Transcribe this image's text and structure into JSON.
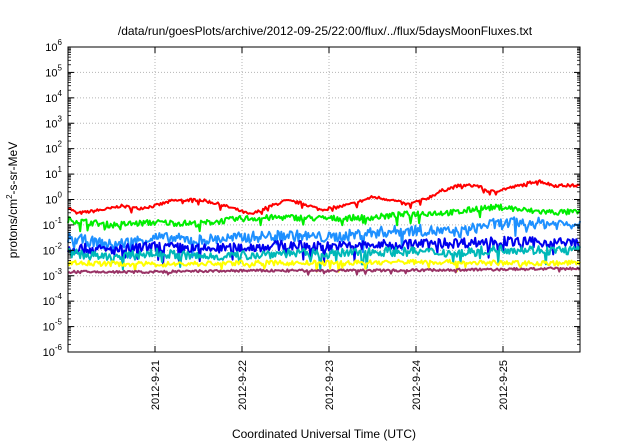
{
  "chart_data": {
    "type": "line",
    "title": "/data/run/goesPlots/archive/2012-09-25/22:00/flux/../flux/5daysMoonFluxes.txt",
    "xlabel": "Coordinated Universal Time (UTC)",
    "ylabel_parts": {
      "base": "protons/cm",
      "sup": "2",
      "rest": "-s-sr-MeV"
    },
    "y_scale": "log",
    "ylim_exponents": [
      -6,
      6
    ],
    "yticks": [
      {
        "base": "10",
        "exp": "-6",
        "e": -6
      },
      {
        "base": "10",
        "exp": "-5",
        "e": -5
      },
      {
        "base": "10",
        "exp": "-4",
        "e": -4
      },
      {
        "base": "10",
        "exp": "-3",
        "e": -3
      },
      {
        "base": "10",
        "exp": "-2",
        "e": -2
      },
      {
        "base": "10",
        "exp": "-1",
        "e": -1
      },
      {
        "base": "10",
        "exp": "0",
        "e": 0
      },
      {
        "base": "10",
        "exp": "1",
        "e": 1
      },
      {
        "base": "10",
        "exp": "2",
        "e": 2
      },
      {
        "base": "10",
        "exp": "3",
        "e": 3
      },
      {
        "base": "10",
        "exp": "4",
        "e": 4
      },
      {
        "base": "10",
        "exp": "5",
        "e": 5
      },
      {
        "base": "10",
        "exp": "6",
        "e": 6
      }
    ],
    "x_range_days": [
      0,
      5
    ],
    "xticks": [
      {
        "label": "2012-9-21",
        "day": 1
      },
      {
        "label": "2012-9-22",
        "day": 2
      },
      {
        "label": "2012-9-23",
        "day": 3
      },
      {
        "label": "2012-9-24",
        "day": 4
      },
      {
        "label": "2012-9-25",
        "day": 5
      }
    ],
    "grid": true,
    "series": [
      {
        "color": "#ff0000",
        "noise": 0.06,
        "points": [
          [
            0,
            -0.3
          ],
          [
            0.1,
            -0.55
          ],
          [
            0.3,
            -0.45
          ],
          [
            0.5,
            -0.35
          ],
          [
            0.6,
            -0.25
          ],
          [
            0.8,
            -0.35
          ],
          [
            1.0,
            -0.25
          ],
          [
            1.2,
            -0.05
          ],
          [
            1.5,
            0.0
          ],
          [
            1.7,
            -0.15
          ],
          [
            1.9,
            -0.35
          ],
          [
            2.1,
            -0.6
          ],
          [
            2.3,
            -0.3
          ],
          [
            2.5,
            -0.05
          ],
          [
            2.7,
            -0.15
          ],
          [
            2.9,
            -0.4
          ],
          [
            3.1,
            -0.3
          ],
          [
            3.3,
            -0.15
          ],
          [
            3.5,
            0.1
          ],
          [
            3.7,
            0.0
          ],
          [
            3.9,
            -0.2
          ],
          [
            4.1,
            0.0
          ],
          [
            4.3,
            0.35
          ],
          [
            4.5,
            0.55
          ],
          [
            4.7,
            0.55
          ],
          [
            4.85,
            0.3
          ],
          [
            5.0,
            0.4
          ],
          [
            5.2,
            0.55
          ],
          [
            5.4,
            0.75
          ],
          [
            5.58,
            0.55
          ]
        ]
      },
      {
        "color": "#00ee00",
        "noise": 0.12,
        "points": [
          [
            0,
            -0.8
          ],
          [
            0.5,
            -1.0
          ],
          [
            1.0,
            -0.9
          ],
          [
            1.5,
            -0.95
          ],
          [
            2.0,
            -0.75
          ],
          [
            2.5,
            -0.7
          ],
          [
            3.0,
            -0.75
          ],
          [
            3.5,
            -0.7
          ],
          [
            4.0,
            -0.55
          ],
          [
            4.5,
            -0.5
          ],
          [
            4.7,
            -0.35
          ],
          [
            5.0,
            -0.3
          ],
          [
            5.3,
            -0.45
          ],
          [
            5.58,
            -0.5
          ]
        ]
      },
      {
        "color": "#1e90ff",
        "noise": 0.22,
        "points": [
          [
            0,
            -1.5
          ],
          [
            0.5,
            -1.8
          ],
          [
            1.0,
            -1.5
          ],
          [
            1.5,
            -1.6
          ],
          [
            2.0,
            -1.5
          ],
          [
            2.5,
            -1.4
          ],
          [
            3.0,
            -1.5
          ],
          [
            3.5,
            -1.3
          ],
          [
            4.0,
            -1.2
          ],
          [
            4.5,
            -1.3
          ],
          [
            4.8,
            -1.0
          ],
          [
            5.2,
            -0.9
          ],
          [
            5.58,
            -0.95
          ]
        ]
      },
      {
        "color": "#0000ee",
        "noise": 0.2,
        "points": [
          [
            0,
            -1.9
          ],
          [
            0.5,
            -2.0
          ],
          [
            1.0,
            -1.85
          ],
          [
            1.5,
            -1.95
          ],
          [
            2.0,
            -1.9
          ],
          [
            2.5,
            -1.8
          ],
          [
            3.0,
            -1.85
          ],
          [
            3.5,
            -1.8
          ],
          [
            4.0,
            -1.75
          ],
          [
            4.5,
            -1.7
          ],
          [
            5.0,
            -1.65
          ],
          [
            5.58,
            -1.7
          ]
        ]
      },
      {
        "color": "#00b8b8",
        "noise": 0.18,
        "points": [
          [
            0,
            -2.1
          ],
          [
            0.5,
            -2.3
          ],
          [
            1.0,
            -2.1
          ],
          [
            1.5,
            -2.25
          ],
          [
            2.0,
            -2.2
          ],
          [
            2.5,
            -2.1
          ],
          [
            3.0,
            -2.15
          ],
          [
            3.5,
            -2.05
          ],
          [
            4.0,
            -2.05
          ],
          [
            4.5,
            -2.1
          ],
          [
            5.0,
            -1.95
          ],
          [
            5.58,
            -2.0
          ]
        ]
      },
      {
        "color": "#ffff00",
        "noise": 0.1,
        "points": [
          [
            0,
            -2.5
          ],
          [
            1.0,
            -2.55
          ],
          [
            2.0,
            -2.5
          ],
          [
            3.0,
            -2.5
          ],
          [
            4.0,
            -2.45
          ],
          [
            5.0,
            -2.5
          ],
          [
            5.58,
            -2.5
          ]
        ]
      },
      {
        "color": "#993366",
        "noise": 0.05,
        "points": [
          [
            0,
            -2.85
          ],
          [
            1.0,
            -2.85
          ],
          [
            2.0,
            -2.8
          ],
          [
            3.0,
            -2.8
          ],
          [
            4.0,
            -2.78
          ],
          [
            5.0,
            -2.75
          ],
          [
            5.58,
            -2.72
          ]
        ]
      }
    ]
  }
}
